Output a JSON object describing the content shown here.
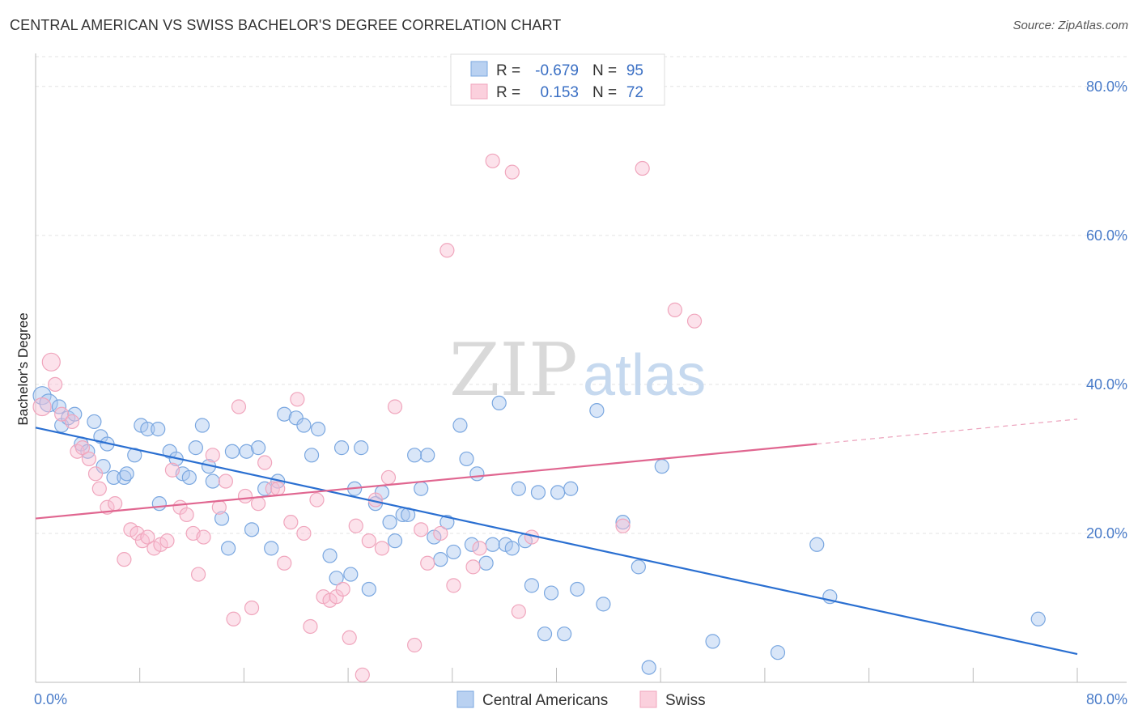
{
  "chart_data": {
    "type": "scatter",
    "title": "CENTRAL AMERICAN VS SWISS BACHELOR'S DEGREE CORRELATION CHART",
    "source": "Source: ZipAtlas.com",
    "xlabel": "",
    "ylabel": "Bachelor's Degree",
    "xlim": [
      0,
      80
    ],
    "ylim": [
      0,
      84
    ],
    "x_tick_labels": [
      "0.0%",
      "80.0%"
    ],
    "y_ticks": [
      20,
      40,
      60,
      80
    ],
    "y_tick_labels": [
      "20.0%",
      "40.0%",
      "60.0%",
      "80.0%"
    ],
    "grid": true,
    "watermark": {
      "zip": "ZIP",
      "atlas": "atlas"
    },
    "legend": {
      "rows": [
        {
          "r_label": "R =",
          "r_value": "-0.679",
          "n_label": "N =",
          "n_value": "95"
        },
        {
          "r_label": "R =",
          "r_value": "0.153",
          "n_label": "N =",
          "n_value": "72"
        }
      ]
    },
    "series": [
      {
        "name": "Central Americans",
        "color": "#7aa7e0",
        "line_color": "#2a6fd1",
        "trend": {
          "x0": 0,
          "y0": 34.2,
          "x1": 80,
          "y1": 3.8,
          "dashed_to": 80
        },
        "points": [
          [
            0.5,
            38.5
          ],
          [
            1,
            37.5
          ],
          [
            1.8,
            37
          ],
          [
            2,
            34.5
          ],
          [
            2.5,
            35.5
          ],
          [
            3,
            36
          ],
          [
            3.5,
            32
          ],
          [
            4,
            31
          ],
          [
            4.5,
            35
          ],
          [
            5,
            33
          ],
          [
            5.5,
            32
          ],
          [
            5.2,
            29
          ],
          [
            6,
            27.5
          ],
          [
            6.8,
            27.5
          ],
          [
            7,
            28
          ],
          [
            7.6,
            30.5
          ],
          [
            8.1,
            34.5
          ],
          [
            8.6,
            34
          ],
          [
            9.4,
            34
          ],
          [
            9.5,
            24
          ],
          [
            10.3,
            31
          ],
          [
            10.8,
            30
          ],
          [
            11.3,
            28
          ],
          [
            11.8,
            27.5
          ],
          [
            12.3,
            31.5
          ],
          [
            12.8,
            34.5
          ],
          [
            13.3,
            29
          ],
          [
            13.6,
            27
          ],
          [
            14.3,
            22
          ],
          [
            14.8,
            18
          ],
          [
            15.1,
            31
          ],
          [
            16.2,
            31
          ],
          [
            17.1,
            31.5
          ],
          [
            16.6,
            20.5
          ],
          [
            17.6,
            26
          ],
          [
            18.1,
            18
          ],
          [
            18.6,
            27
          ],
          [
            19.1,
            36
          ],
          [
            20,
            35.5
          ],
          [
            20.6,
            34.5
          ],
          [
            21.2,
            30.5
          ],
          [
            21.7,
            34
          ],
          [
            22.6,
            17
          ],
          [
            23.1,
            14
          ],
          [
            23.5,
            31.5
          ],
          [
            24.2,
            14.5
          ],
          [
            24.5,
            26
          ],
          [
            25,
            31.5
          ],
          [
            25.6,
            12.5
          ],
          [
            26.1,
            24
          ],
          [
            26.6,
            25.5
          ],
          [
            27.2,
            21.5
          ],
          [
            27.6,
            19
          ],
          [
            28.2,
            22.5
          ],
          [
            28.6,
            22.5
          ],
          [
            29.1,
            30.5
          ],
          [
            29.6,
            26
          ],
          [
            30.1,
            30.5
          ],
          [
            30.6,
            19.5
          ],
          [
            31.1,
            16.5
          ],
          [
            31.6,
            21.5
          ],
          [
            32.1,
            17.5
          ],
          [
            32.6,
            34.5
          ],
          [
            33.1,
            30
          ],
          [
            33.5,
            18.5
          ],
          [
            33.9,
            28
          ],
          [
            34.6,
            16
          ],
          [
            35.1,
            18.5
          ],
          [
            35.6,
            37.5
          ],
          [
            36.1,
            18.5
          ],
          [
            36.6,
            18
          ],
          [
            37.1,
            26
          ],
          [
            37.6,
            19
          ],
          [
            38.1,
            13
          ],
          [
            38.6,
            25.5
          ],
          [
            39.1,
            6.5
          ],
          [
            39.6,
            12
          ],
          [
            40.1,
            25.5
          ],
          [
            40.6,
            6.5
          ],
          [
            41.1,
            26
          ],
          [
            41.6,
            12.5
          ],
          [
            43.1,
            36.5
          ],
          [
            43.6,
            10.5
          ],
          [
            45.1,
            21.5
          ],
          [
            46.3,
            15.5
          ],
          [
            47.1,
            2
          ],
          [
            48.1,
            29
          ],
          [
            52,
            5.5
          ],
          [
            57,
            4
          ],
          [
            60,
            18.5
          ],
          [
            61,
            11.5
          ],
          [
            77,
            8.5
          ]
        ]
      },
      {
        "name": "Swiss",
        "color": "#f0a6bd",
        "line_color": "#e06690",
        "trend": {
          "x0": 0,
          "y0": 22.0,
          "x1": 60,
          "y1": 32.0,
          "dashed_to": 80
        },
        "points": [
          [
            0.5,
            37
          ],
          [
            1.2,
            43
          ],
          [
            1.5,
            40
          ],
          [
            2,
            36
          ],
          [
            2.8,
            35
          ],
          [
            3.2,
            31
          ],
          [
            3.6,
            31.5
          ],
          [
            4.1,
            30
          ],
          [
            4.6,
            28
          ],
          [
            4.9,
            26
          ],
          [
            5.5,
            23.5
          ],
          [
            6.1,
            24
          ],
          [
            6.8,
            16.5
          ],
          [
            7.3,
            20.5
          ],
          [
            7.8,
            20
          ],
          [
            8.2,
            19
          ],
          [
            8.6,
            19.5
          ],
          [
            9.1,
            18
          ],
          [
            9.6,
            18.5
          ],
          [
            10.1,
            19
          ],
          [
            10.5,
            28.5
          ],
          [
            11.1,
            23.5
          ],
          [
            11.6,
            22.5
          ],
          [
            12.1,
            20
          ],
          [
            12.5,
            14.5
          ],
          [
            12.9,
            19.5
          ],
          [
            13.6,
            30.5
          ],
          [
            14.1,
            23.5
          ],
          [
            14.6,
            27
          ],
          [
            15.2,
            8.5
          ],
          [
            15.6,
            37
          ],
          [
            16.1,
            25
          ],
          [
            16.6,
            10
          ],
          [
            17.1,
            24
          ],
          [
            17.6,
            29.5
          ],
          [
            18.2,
            26
          ],
          [
            18.6,
            26
          ],
          [
            19.1,
            16
          ],
          [
            19.6,
            21.5
          ],
          [
            20.1,
            38
          ],
          [
            20.6,
            20
          ],
          [
            21.1,
            7.5
          ],
          [
            21.6,
            24.5
          ],
          [
            22.1,
            11.5
          ],
          [
            22.6,
            11
          ],
          [
            23.1,
            11.5
          ],
          [
            23.6,
            12.5
          ],
          [
            24.1,
            6
          ],
          [
            24.6,
            21
          ],
          [
            25.1,
            1
          ],
          [
            25.6,
            19
          ],
          [
            26.1,
            24.5
          ],
          [
            26.6,
            18
          ],
          [
            27.1,
            27.5
          ],
          [
            27.6,
            37
          ],
          [
            29.1,
            5
          ],
          [
            29.6,
            20.5
          ],
          [
            30.1,
            16
          ],
          [
            31.1,
            20
          ],
          [
            31.6,
            58
          ],
          [
            32.1,
            13
          ],
          [
            33.6,
            15.5
          ],
          [
            34.1,
            18
          ],
          [
            35.1,
            70
          ],
          [
            36.6,
            68.5
          ],
          [
            37.1,
            9.5
          ],
          [
            38.1,
            19.5
          ],
          [
            45.1,
            21
          ],
          [
            46.6,
            69
          ],
          [
            49.1,
            50
          ],
          [
            50.6,
            48.5
          ]
        ]
      }
    ]
  }
}
